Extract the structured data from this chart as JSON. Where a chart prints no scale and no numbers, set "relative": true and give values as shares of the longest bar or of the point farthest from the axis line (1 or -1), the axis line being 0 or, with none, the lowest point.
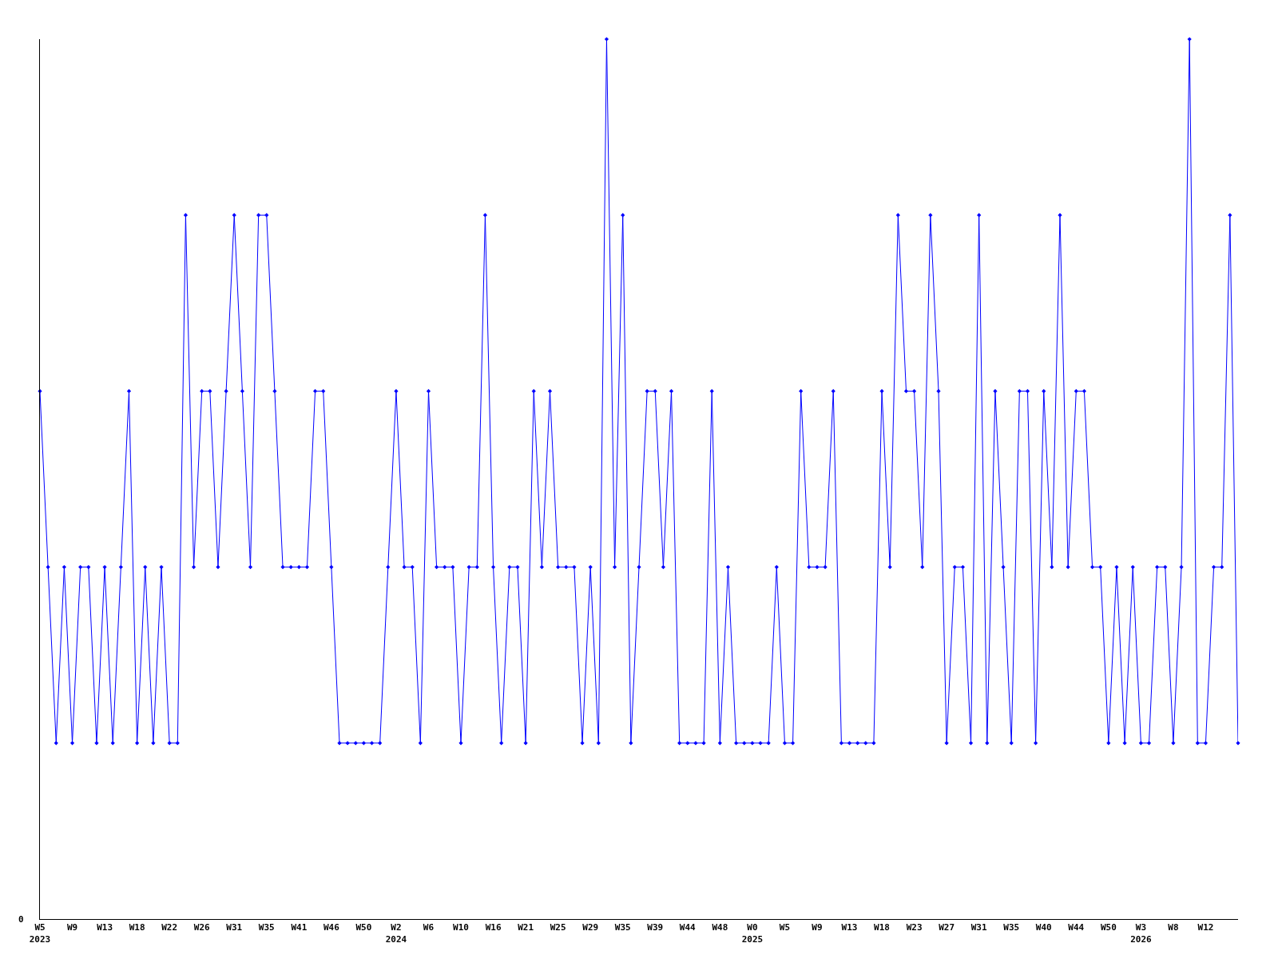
{
  "chart_data": {
    "type": "line",
    "relative": true,
    "marker": "diamond",
    "annotations": [
      "0"
    ],
    "categories": [
      "W5\n2023",
      null,
      null,
      null,
      "W9",
      null,
      null,
      null,
      "W13",
      null,
      null,
      null,
      "W18",
      null,
      null,
      null,
      "W22",
      null,
      null,
      null,
      "W26",
      null,
      null,
      null,
      "W31",
      null,
      null,
      null,
      "W35",
      null,
      null,
      null,
      "W41",
      null,
      null,
      null,
      "W46",
      null,
      null,
      null,
      "W50",
      null,
      null,
      null,
      "W2\n2024",
      null,
      null,
      null,
      "W6",
      null,
      null,
      null,
      "W10",
      null,
      null,
      null,
      "W16",
      null,
      null,
      null,
      "W21",
      null,
      null,
      null,
      "W25",
      null,
      null,
      null,
      "W29",
      null,
      null,
      null,
      "W35",
      null,
      null,
      null,
      "W39",
      null,
      null,
      null,
      "W44",
      null,
      null,
      null,
      "W48",
      null,
      null,
      null,
      "W0\n2025",
      null,
      null,
      null,
      "W5",
      null,
      null,
      null,
      "W9",
      null,
      null,
      null,
      "W13",
      null,
      null,
      null,
      "W18",
      null,
      null,
      null,
      "W23",
      null,
      null,
      null,
      "W27",
      null,
      null,
      null,
      "W31",
      null,
      null,
      null,
      "W35",
      null,
      null,
      null,
      "W40",
      null,
      null,
      null,
      "W44",
      null,
      null,
      null,
      "W50",
      null,
      null,
      null,
      "W3\n2026",
      null,
      null,
      null,
      "W8",
      null,
      null,
      null,
      "W12",
      null,
      null,
      null,
      null
    ],
    "series": [
      {
        "color": "#0000ff",
        "values": [
          0.6,
          0.4,
          0.2,
          0.4,
          0.2,
          0.4,
          0.4,
          0.2,
          0.4,
          0.2,
          0.4,
          0.6,
          0.2,
          0.4,
          0.2,
          0.4,
          0.2,
          0.2,
          0.8,
          0.4,
          0.6,
          0.6,
          0.4,
          0.6,
          0.8,
          0.6,
          0.4,
          0.8,
          0.8,
          0.6,
          0.4,
          0.4,
          0.4,
          0.4,
          0.6,
          0.6,
          0.4,
          0.2,
          0.2,
          0.2,
          0.2,
          0.2,
          0.2,
          0.4,
          0.6,
          0.4,
          0.4,
          0.2,
          0.6,
          0.4,
          0.4,
          0.4,
          0.2,
          0.4,
          0.4,
          0.8,
          0.4,
          0.2,
          0.4,
          0.4,
          0.2,
          0.6,
          0.4,
          0.6,
          0.4,
          0.4,
          0.4,
          0.2,
          0.4,
          0.2,
          1,
          0.4,
          0.8,
          0.2,
          0.4,
          0.6,
          0.6,
          0.4,
          0.6,
          0.2,
          0.2,
          0.2,
          0.2,
          0.6,
          0.2,
          0.4,
          0.2,
          0.2,
          0.2,
          0.2,
          0.2,
          0.4,
          0.2,
          0.2,
          0.6,
          0.4,
          0.4,
          0.4,
          0.6,
          0.2,
          0.2,
          0.2,
          0.2,
          0.2,
          0.6,
          0.4,
          0.8,
          0.6,
          0.6,
          0.4,
          0.8,
          0.6,
          0.2,
          0.4,
          0.4,
          0.2,
          0.8,
          0.2,
          0.6,
          0.4,
          0.2,
          0.6,
          0.6,
          0.2,
          0.6,
          0.4,
          0.8,
          0.4,
          0.6,
          0.6,
          0.4,
          0.4,
          0.2,
          0.4,
          0.2,
          0.4,
          0.2,
          0.2,
          0.4,
          0.4,
          0.2,
          0.4,
          1,
          0.2,
          0.2,
          0.4,
          0.4,
          0.8,
          0.2
        ]
      }
    ]
  }
}
